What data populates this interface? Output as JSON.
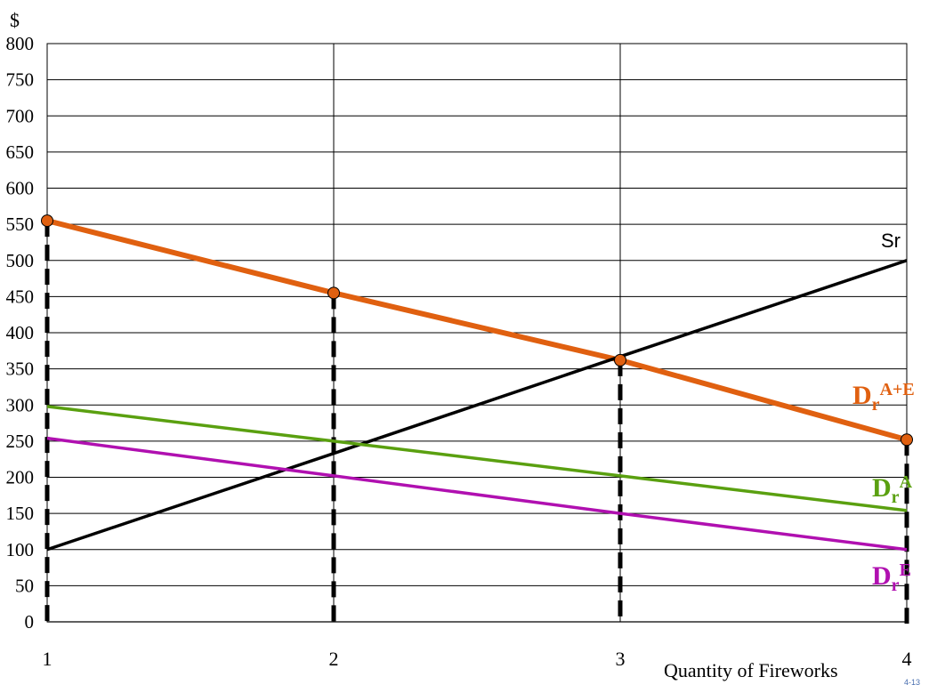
{
  "chart_data": {
    "type": "line",
    "ylabel": "$",
    "xlabel": "Quantity of Fireworks",
    "x": [
      1,
      2,
      3,
      4
    ],
    "xlim": [
      1,
      4
    ],
    "ylim": [
      0,
      800
    ],
    "ytick_step": 50,
    "grid": true,
    "series": [
      {
        "name": "Dr A+E",
        "label_main": "D",
        "label_sub": "r",
        "label_sup": "A+E",
        "color": "#e06010",
        "values": [
          555,
          455,
          362,
          252
        ],
        "markers": true
      },
      {
        "name": "Sr",
        "label_main": "Sr",
        "label_sub": "",
        "label_sup": "",
        "color": "#000000",
        "values": [
          100,
          233,
          367,
          500
        ],
        "markers": false
      },
      {
        "name": "Dr A",
        "label_main": "D",
        "label_sub": "r",
        "label_sup": "A",
        "color": "#5aa010",
        "values": [
          298,
          250,
          202,
          154
        ],
        "markers": false
      },
      {
        "name": "Dr E",
        "label_main": "D",
        "label_sub": "r",
        "label_sup": "E",
        "color": "#b010b0",
        "values": [
          254,
          202,
          150,
          100
        ],
        "markers": false
      }
    ],
    "vertical_dashed_at_x": [
      1,
      2,
      3,
      4
    ],
    "footnote": "4-13"
  }
}
